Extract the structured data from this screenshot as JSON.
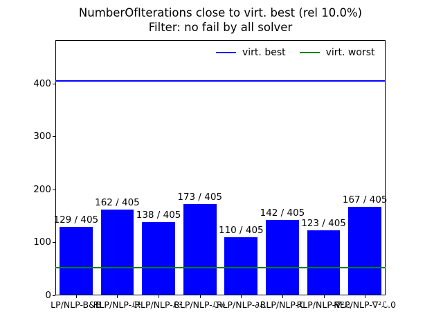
{
  "chart_data": {
    "type": "bar",
    "title": "NumberOfIterations close to virt. best (rel 10.0%)",
    "subtitle": "Filter: no fail by all solver",
    "categories": [
      "LP/NLP-B&B",
      "RLP/NLP-ℒ¹",
      "RLP/NLP-ℒ²",
      "RLP/NLP-ℒ∞",
      "RLP/NLP-∂ℒ",
      "RLP/NLP-ℒ",
      "RLP/NLP-∇²ℒ",
      "RLP/NLP-∇²ℒ.0"
    ],
    "values": [
      129,
      162,
      138,
      173,
      110,
      142,
      123,
      167
    ],
    "total": 405,
    "bar_labels": [
      "129 / 405",
      "162 / 405",
      "138 / 405",
      "173 / 405",
      "110 / 405",
      "142 / 405",
      "123 / 405",
      "167 / 405"
    ],
    "bar_color": "#0000ff",
    "ylim": [
      0,
      482
    ],
    "yticks": [
      "0",
      "100",
      "200",
      "300",
      "400"
    ],
    "ytick_values": [
      0,
      100,
      200,
      300,
      400
    ],
    "grid": false,
    "legend_position": "upper right, frameless, horizontal",
    "legend": [
      {
        "label": "virt. best",
        "color": "#0000ff"
      },
      {
        "label": "virt. worst",
        "color": "#008000"
      }
    ],
    "hlines": [
      {
        "name": "virt. best",
        "value": 405,
        "color": "#0000ff"
      },
      {
        "name": "virt. worst",
        "value": 52,
        "color": "#008000"
      }
    ]
  }
}
